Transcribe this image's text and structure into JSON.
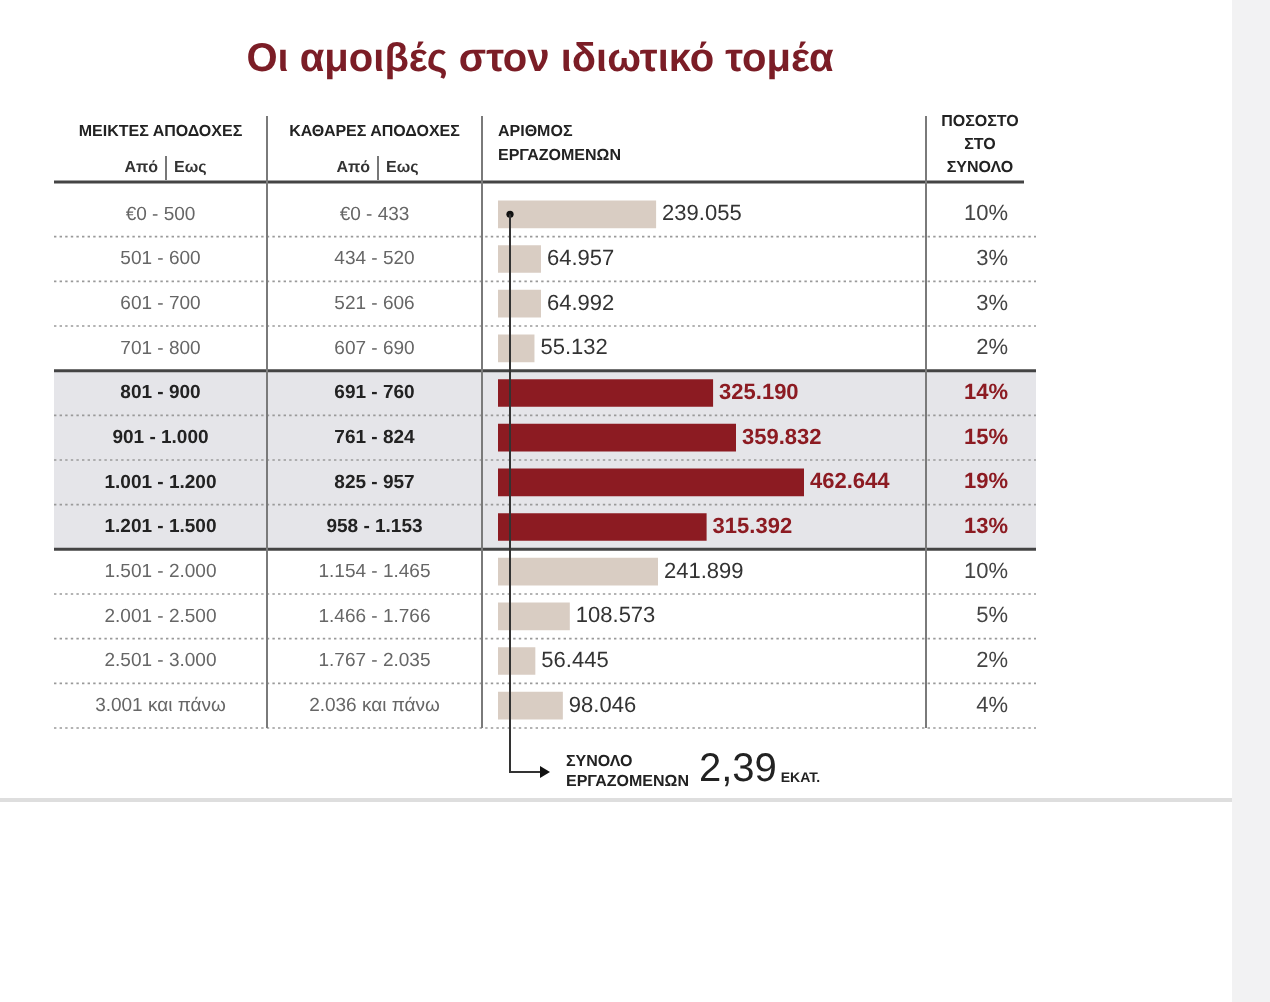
{
  "chart_data": {
    "type": "bar",
    "orientation": "horizontal",
    "title": "Οι αμοιβές στον ιδιωτικό τομέα",
    "ylabel": "ΜΕΙΚΤΕΣ ΑΠΟΔΟΧΕΣ",
    "y2label": "ΚΑΘΑΡΕΣ ΑΠΟΔΟΧΕΣ",
    "xlabel": "ΑΡΙΘΜΟΣ ΕΡΓΑΖΟΜΕΝΩΝ",
    "categories": [
      "€0 - 500",
      "501 - 600",
      "601 - 700",
      "701 - 800",
      "801 - 900",
      "901 - 1.000",
      "1.001 - 1.200",
      "1.201 - 1.500",
      "1.501 - 2.000",
      "2.001 - 2.500",
      "2.501 - 3.000",
      "3.001 και πάνω"
    ],
    "y2_categories": [
      "€0 - 433",
      "434 - 520",
      "521 - 606",
      "607 - 690",
      "691 - 760",
      "761 - 824",
      "825 - 957",
      "958 - 1.153",
      "1.154 - 1.465",
      "1.466 - 1.766",
      "1.767 - 2.035",
      "2.036 και πάνω"
    ],
    "series": [
      {
        "values": [
          239055,
          64957,
          64992,
          55132,
          325190,
          359832,
          462644,
          315392,
          241899,
          108573,
          56445,
          98046
        ],
        "colors": [
          "#d9cdc3",
          "#d9cdc3",
          "#d9cdc3",
          "#d9cdc3",
          "#8c1b22",
          "#8c1b22",
          "#8c1b22",
          "#8c1b22",
          "#d9cdc3",
          "#d9cdc3",
          "#d9cdc3",
          "#d9cdc3"
        ],
        "value_labels": [
          "239.055",
          "64.957",
          "64.992",
          "55.132",
          "325.190",
          "359.832",
          "462.644",
          "315.392",
          "241.899",
          "108.573",
          "56.445",
          "98.046"
        ]
      }
    ],
    "bands": [
      {
        "axis": "y",
        "from": "801 - 900",
        "to": "1.201 - 1.500",
        "color": "#e5e5e9"
      }
    ],
    "annotations": [
      "Από",
      "Εως",
      "Από",
      "Εως",
      "ΠΟΣΟΣΤΟ ΣΤΟ ΣΥΝΟΛΟ",
      "ΣΥΝΟΛΟ ΕΡΓΑΖΟΜΕΝΩΝ",
      "2,39",
      "ΕΚΑΤ.",
      "10%",
      "3%",
      "3%",
      "2%",
      "14%",
      "15%",
      "19%",
      "13%",
      "10%",
      "5%",
      "2%",
      "4%"
    ]
  }
}
